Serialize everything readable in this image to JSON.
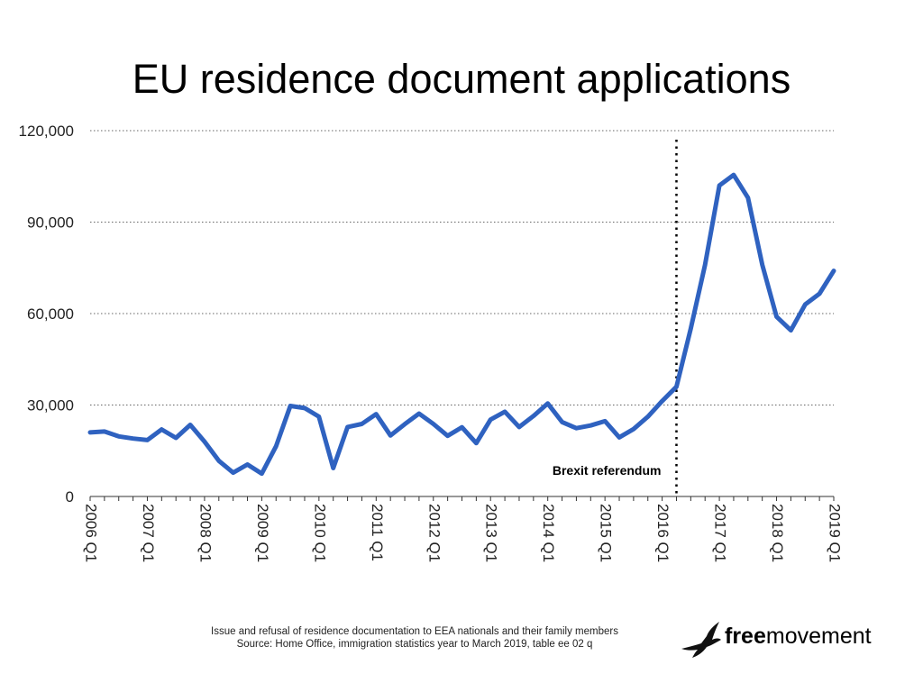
{
  "chart_data": {
    "type": "line",
    "title": "EU residence document applications",
    "xlabel": "",
    "ylabel": "",
    "ylim": [
      0,
      120000
    ],
    "yticks": [
      0,
      30000,
      60000,
      90000,
      120000
    ],
    "ytick_labels": [
      "0",
      "30,000",
      "60,000",
      "90,000",
      "120,000"
    ],
    "xtick_labels": [
      "2006 Q1",
      "2007 Q1",
      "2008 Q1",
      "2009 Q1",
      "2010 Q1",
      "2011 Q1",
      "2012 Q1",
      "2013 Q1",
      "2014 Q1",
      "2015 Q1",
      "2016 Q1",
      "2017 Q1",
      "2018 Q1",
      "2019 Q1"
    ],
    "grid": true,
    "line_color": "#2f62c0",
    "quarters": [
      "2006 Q1",
      "2006 Q2",
      "2006 Q3",
      "2006 Q4",
      "2007 Q1",
      "2007 Q2",
      "2007 Q3",
      "2007 Q4",
      "2008 Q1",
      "2008 Q2",
      "2008 Q3",
      "2008 Q4",
      "2009 Q1",
      "2009 Q2",
      "2009 Q3",
      "2009 Q4",
      "2010 Q1",
      "2010 Q2",
      "2010 Q3",
      "2010 Q4",
      "2011 Q1",
      "2011 Q2",
      "2011 Q3",
      "2011 Q4",
      "2012 Q1",
      "2012 Q2",
      "2012 Q3",
      "2012 Q4",
      "2013 Q1",
      "2013 Q2",
      "2013 Q3",
      "2013 Q4",
      "2014 Q1",
      "2014 Q2",
      "2014 Q3",
      "2014 Q4",
      "2015 Q1",
      "2015 Q2",
      "2015 Q3",
      "2015 Q4",
      "2016 Q1",
      "2016 Q2",
      "2016 Q3",
      "2016 Q4",
      "2017 Q1",
      "2017 Q2",
      "2017 Q3",
      "2017 Q4",
      "2018 Q1",
      "2018 Q2",
      "2018 Q3",
      "2018 Q4",
      "2019 Q1"
    ],
    "series": [
      {
        "values": [
          21000,
          21300,
          19700,
          19000,
          18500,
          22000,
          19200,
          23500,
          18000,
          11700,
          7800,
          10500,
          7500,
          16500,
          29700,
          29000,
          26200,
          9300,
          22800,
          23800,
          27000,
          20000,
          23700,
          27200,
          23800,
          19900,
          22700,
          17500,
          25200,
          27800,
          22800,
          26400,
          30500,
          24400,
          22400,
          23300,
          24700,
          19400,
          22100,
          26200,
          31300,
          36000,
          55000,
          76000,
          102000,
          105500,
          98000,
          76000,
          59000,
          54500,
          63000,
          66500,
          74000
        ]
      }
    ],
    "annotation": {
      "label": "Brexit referendum",
      "quarter": "2016 Q2"
    }
  },
  "footnote": {
    "line1": "Issue and refusal of residence documentation to EEA nationals and their family members",
    "line2": "Source: Home Office, immigration statistics year to March 2019, table ee 02 q"
  },
  "logo": {
    "bold": "free",
    "light": "movement"
  }
}
